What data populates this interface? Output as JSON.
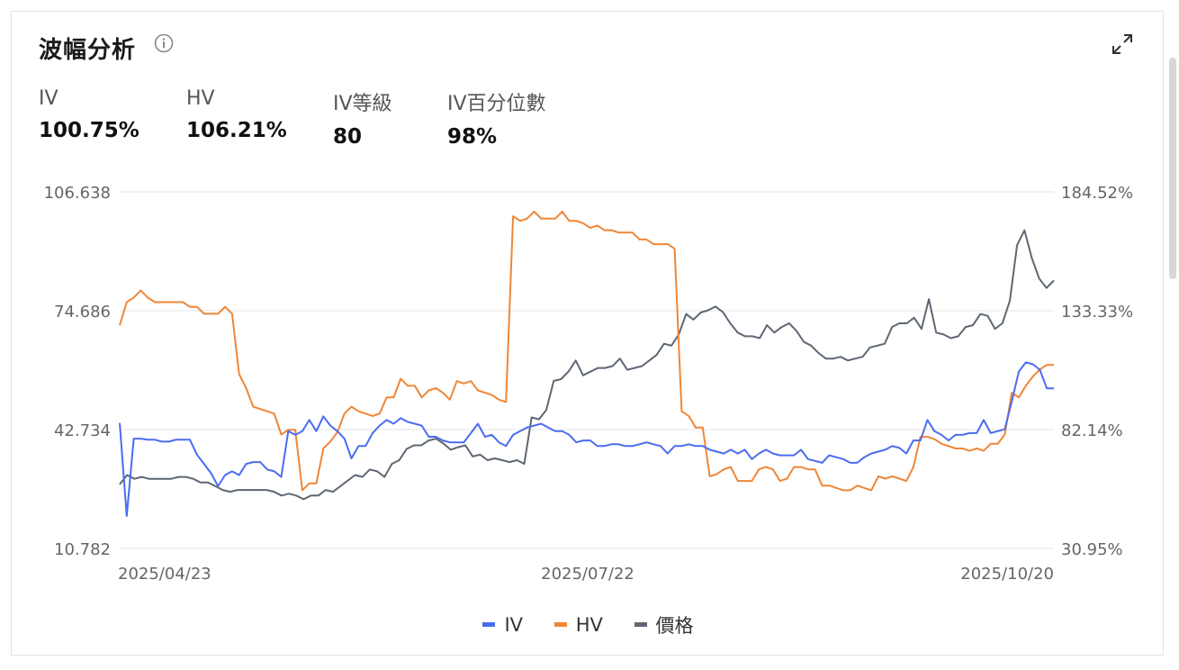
{
  "header": {
    "title": "波幅分析"
  },
  "stats": [
    {
      "label": "IV",
      "value": "100.75%"
    },
    {
      "label": "HV",
      "value": "106.21%"
    },
    {
      "label": "IV等級",
      "value": "80"
    },
    {
      "label": "IV百分位數",
      "value": "98%"
    }
  ],
  "colors": {
    "iv": "#4a6cf0",
    "hv": "#ef8636",
    "price": "#5f6774",
    "grid": "#eeeeee",
    "axis_text": "#666666"
  },
  "icons": {
    "info": "info-icon",
    "expand": "expand-icon"
  },
  "chart_data": {
    "type": "line",
    "x_tick_labels": [
      "2025/04/23",
      "2025/07/22",
      "2025/10/20"
    ],
    "left_axis": {
      "ticks": [
        "106.638",
        "74.686",
        "42.734",
        "10.782"
      ],
      "ylim": [
        10.782,
        106.638
      ]
    },
    "right_axis": {
      "ticks": [
        "184.52%",
        "133.33%",
        "82.14%",
        "30.95%"
      ],
      "ylim": [
        30.95,
        184.52
      ]
    },
    "grid": true,
    "legend_position": "bottom",
    "series": [
      {
        "name": "IV",
        "axis": "left",
        "values": [
          44.5,
          19.5,
          40.3,
          40.3,
          40.0,
          40.0,
          39.5,
          39.5,
          40.0,
          40.0,
          40.0,
          36.0,
          33.5,
          31.0,
          27.5,
          30.5,
          31.5,
          30.5,
          33.5,
          34.0,
          34.0,
          32.0,
          31.5,
          30.0,
          42.3,
          41.3,
          42.3,
          45.3,
          42.3,
          46.3,
          43.8,
          42.3,
          40.3,
          35.0,
          38.3,
          38.3,
          41.8,
          43.8,
          45.3,
          44.3,
          45.8,
          44.8,
          44.3,
          43.8,
          40.8,
          40.8,
          39.8,
          39.3,
          39.3,
          39.3,
          41.8,
          44.3,
          40.8,
          41.3,
          39.3,
          38.3,
          41.3,
          42.3,
          43.3,
          43.8,
          44.3,
          43.3,
          42.3,
          42.3,
          41.3,
          39.3,
          39.8,
          39.8,
          38.3,
          38.3,
          38.8,
          38.8,
          38.3,
          38.3,
          38.8,
          39.3,
          38.8,
          38.3,
          36.3,
          38.3,
          38.3,
          38.8,
          38.3,
          38.3,
          37.3,
          36.8,
          36.3,
          37.3,
          36.3,
          37.3,
          34.8,
          36.3,
          37.3,
          36.3,
          35.8,
          35.8,
          35.8,
          37.3,
          34.8,
          34.3,
          33.8,
          35.8,
          35.3,
          34.8,
          33.8,
          33.8,
          35.3,
          36.3,
          36.8,
          37.3,
          38.3,
          37.8,
          36.3,
          39.8,
          39.8,
          45.3,
          42.3,
          41.3,
          39.8,
          41.3,
          41.3,
          41.8,
          41.8,
          45.3,
          41.8,
          42.3,
          42.8,
          50.3,
          58.3,
          60.8,
          60.3,
          58.8,
          53.8,
          53.8
        ]
      },
      {
        "name": "HV",
        "axis": "right",
        "values": [
          127,
          137,
          139,
          142,
          139,
          137,
          137,
          137,
          137,
          137,
          135,
          135,
          132,
          132,
          132,
          135,
          132,
          106,
          100,
          92,
          91,
          90,
          89,
          80,
          82,
          82,
          56,
          59,
          59,
          74,
          77,
          81,
          89,
          92,
          90,
          89,
          88,
          89,
          96,
          96,
          104,
          101,
          101,
          96,
          99,
          100,
          98,
          95,
          103,
          102,
          103,
          99,
          98,
          97,
          95,
          94,
          174,
          172,
          173,
          176,
          173,
          173,
          173,
          176,
          172,
          172,
          171,
          169,
          170,
          168,
          168,
          167,
          167,
          167,
          164,
          164,
          162,
          162,
          162,
          160,
          90,
          88,
          83,
          83,
          62,
          63,
          65,
          66,
          60,
          60,
          60,
          65,
          66,
          65,
          60,
          61,
          66,
          66,
          65,
          65,
          58,
          58,
          57,
          56,
          56,
          58,
          57,
          56,
          62,
          61,
          62,
          61,
          60,
          66,
          79,
          79,
          78,
          76,
          75,
          74,
          74,
          73,
          74,
          73,
          76,
          76,
          80,
          98,
          96,
          101,
          105,
          108,
          110,
          110
        ]
      },
      {
        "name": "價格",
        "axis": "left",
        "values": [
          28.0,
          30.5,
          29.5,
          30.0,
          29.5,
          29.5,
          29.5,
          29.5,
          30.0,
          30.0,
          29.5,
          28.5,
          28.5,
          27.5,
          26.5,
          26.0,
          26.5,
          26.5,
          26.5,
          26.5,
          26.5,
          26.0,
          25.0,
          25.5,
          25.0,
          24.0,
          25.0,
          25.0,
          26.5,
          26.0,
          27.5,
          29.0,
          30.5,
          30.0,
          32.0,
          31.5,
          30.0,
          33.5,
          34.5,
          37.5,
          38.5,
          38.5,
          39.8,
          40.3,
          39.0,
          37.3,
          38.0,
          38.5,
          35.5,
          36.0,
          34.5,
          35.0,
          34.5,
          34.0,
          34.5,
          33.5,
          46.0,
          45.5,
          48.0,
          55.8,
          56.3,
          58.3,
          61.3,
          57.3,
          58.3,
          59.3,
          59.3,
          59.8,
          61.8,
          58.8,
          59.3,
          59.8,
          61.3,
          62.8,
          65.8,
          65.3,
          68.3,
          73.8,
          72.3,
          74.2,
          74.8,
          75.8,
          74.3,
          71.3,
          68.8,
          67.8,
          67.8,
          67.3,
          70.8,
          68.8,
          70.3,
          71.3,
          69.3,
          66.3,
          65.3,
          63.3,
          61.8,
          61.8,
          62.3,
          61.3,
          61.8,
          62.3,
          64.8,
          65.3,
          65.8,
          70.3,
          71.3,
          71.3,
          72.8,
          69.8,
          77.8,
          68.8,
          68.3,
          67.3,
          67.8,
          70.3,
          70.8,
          73.8,
          73.3,
          69.8,
          71.3,
          77.3,
          92.3,
          96.3,
          88.8,
          83.3,
          80.8,
          82.8
        ]
      }
    ]
  }
}
